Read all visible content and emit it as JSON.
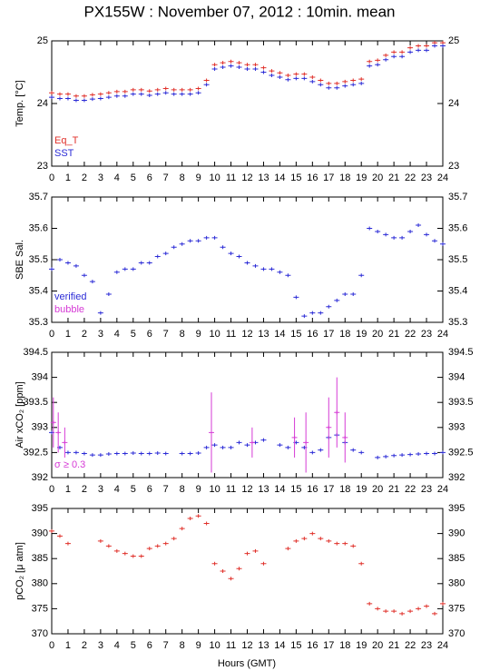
{
  "chart_data": [
    {
      "type": "scatter",
      "title": "PX155W : November 07, 2012 : 10min. mean",
      "ylabel": "Temp. [°C]",
      "xlim": [
        0,
        24
      ],
      "xticks": [
        0,
        1,
        2,
        3,
        4,
        5,
        6,
        7,
        8,
        9,
        10,
        11,
        12,
        13,
        14,
        15,
        16,
        17,
        18,
        19,
        20,
        21,
        22,
        23,
        24
      ],
      "ylim": [
        23,
        25
      ],
      "yticks": [
        23,
        24,
        25
      ],
      "series": [
        {
          "name": "Eq_T",
          "color": "#e0302a",
          "x": [
            0,
            0.5,
            1,
            1.5,
            2,
            2.5,
            3,
            3.5,
            4,
            4.5,
            5,
            5.5,
            6,
            6.5,
            7,
            7.5,
            8,
            8.5,
            9,
            9.5,
            10,
            10.5,
            11,
            11.5,
            12,
            12.5,
            13,
            13.5,
            14,
            14.5,
            15,
            15.5,
            16,
            16.5,
            17,
            17.5,
            18,
            18.5,
            19,
            19.5,
            20,
            20.5,
            21,
            21.5,
            22,
            22.5,
            23,
            23.5,
            24
          ],
          "values": [
            24.17,
            24.15,
            24.15,
            24.12,
            24.12,
            24.14,
            24.15,
            24.17,
            24.19,
            24.19,
            24.22,
            24.22,
            24.2,
            24.22,
            24.24,
            24.22,
            24.22,
            24.22,
            24.24,
            24.37,
            24.62,
            24.65,
            24.67,
            24.65,
            24.62,
            24.62,
            24.57,
            24.52,
            24.49,
            24.45,
            24.47,
            24.47,
            24.42,
            24.37,
            24.32,
            24.32,
            24.35,
            24.37,
            24.39,
            24.67,
            24.69,
            24.77,
            24.82,
            24.82,
            24.89,
            24.92,
            24.92,
            24.97,
            24.97
          ]
        },
        {
          "name": "SST",
          "color": "#2b2bd6",
          "x": [
            0,
            0.5,
            1,
            1.5,
            2,
            2.5,
            3,
            3.5,
            4,
            4.5,
            5,
            5.5,
            6,
            6.5,
            7,
            7.5,
            8,
            8.5,
            9,
            9.5,
            10,
            10.5,
            11,
            11.5,
            12,
            12.5,
            13,
            13.5,
            14,
            14.5,
            15,
            15.5,
            16,
            16.5,
            17,
            17.5,
            18,
            18.5,
            19,
            19.5,
            20,
            20.5,
            21,
            21.5,
            22,
            22.5,
            23,
            23.5,
            24
          ],
          "values": [
            24.1,
            24.08,
            24.08,
            24.05,
            24.05,
            24.07,
            24.08,
            24.1,
            24.12,
            24.12,
            24.15,
            24.15,
            24.13,
            24.15,
            24.17,
            24.15,
            24.15,
            24.15,
            24.17,
            24.3,
            24.55,
            24.58,
            24.6,
            24.58,
            24.55,
            24.55,
            24.5,
            24.45,
            24.42,
            24.38,
            24.4,
            24.4,
            24.35,
            24.3,
            24.25,
            24.25,
            24.28,
            24.3,
            24.32,
            24.6,
            24.62,
            24.7,
            24.75,
            24.75,
            24.82,
            24.85,
            24.85,
            24.92,
            24.92
          ]
        }
      ]
    },
    {
      "type": "scatter",
      "ylabel": "SBE Sal.",
      "xlim": [
        0,
        24
      ],
      "xticks": [
        0,
        1,
        2,
        3,
        4,
        5,
        6,
        7,
        8,
        9,
        10,
        11,
        12,
        13,
        14,
        15,
        16,
        17,
        18,
        19,
        20,
        21,
        22,
        23,
        24
      ],
      "ylim": [
        35.3,
        35.7
      ],
      "yticks": [
        35.3,
        35.4,
        35.5,
        35.6,
        35.7
      ],
      "series": [
        {
          "name": "verified",
          "color": "#2b2bd6",
          "x": [
            0,
            0.5,
            1,
            1.5,
            2,
            2.5,
            3,
            3.5,
            4,
            4.5,
            5,
            5.5,
            6,
            6.5,
            7,
            7.5,
            8,
            8.5,
            9,
            9.5,
            10,
            10.5,
            11,
            11.5,
            12,
            12.5,
            13,
            13.5,
            14,
            14.5,
            15,
            15.5,
            16,
            16.5,
            17,
            17.5,
            18,
            18.5,
            19,
            19.5,
            20,
            20.5,
            21,
            21.5,
            22,
            22.5,
            23,
            23.5,
            24
          ],
          "values": [
            35.47,
            35.5,
            35.49,
            35.48,
            35.45,
            35.43,
            35.33,
            35.39,
            35.46,
            35.47,
            35.47,
            35.49,
            35.49,
            35.51,
            35.52,
            35.54,
            35.55,
            35.56,
            35.56,
            35.57,
            35.57,
            35.54,
            35.52,
            35.51,
            35.49,
            35.48,
            35.47,
            35.47,
            35.46,
            35.45,
            35.38,
            35.32,
            35.33,
            35.33,
            35.35,
            35.37,
            35.39,
            35.39,
            35.45,
            35.6,
            35.59,
            35.58,
            35.57,
            35.57,
            35.59,
            35.61,
            35.58,
            35.56,
            35.55
          ]
        },
        {
          "name": "bubble",
          "color": "#d63bd6",
          "x": [],
          "values": []
        }
      ]
    },
    {
      "type": "scatter",
      "ylabel": "Air xCO₂ [ppm]",
      "xlim": [
        0,
        24
      ],
      "xticks": [
        0,
        1,
        2,
        3,
        4,
        5,
        6,
        7,
        8,
        9,
        10,
        11,
        12,
        13,
        14,
        15,
        16,
        17,
        18,
        19,
        20,
        21,
        22,
        23,
        24
      ],
      "ylim": [
        392,
        394.5
      ],
      "yticks": [
        392,
        392.5,
        393,
        393.5,
        394,
        394.5
      ],
      "series": [
        {
          "color": "#2b2bd6",
          "x": [
            0,
            0.5,
            1,
            1.5,
            2,
            2.5,
            3,
            3.5,
            4,
            4.5,
            5,
            5.5,
            6,
            6.5,
            7,
            8,
            8.5,
            9,
            9.5,
            10,
            10.5,
            11,
            11.5,
            12,
            12.5,
            13,
            14,
            14.5,
            15,
            15.5,
            16,
            16.5,
            17,
            17.5,
            18,
            18.5,
            19,
            20,
            20.5,
            21,
            21.5,
            22,
            22.5,
            23,
            23.5,
            24
          ],
          "values": [
            392.9,
            392.6,
            392.5,
            392.5,
            392.48,
            392.45,
            392.45,
            392.47,
            392.48,
            392.48,
            392.49,
            392.48,
            392.48,
            392.49,
            392.48,
            392.48,
            392.48,
            392.49,
            392.6,
            392.65,
            392.6,
            392.6,
            392.7,
            392.65,
            392.7,
            392.75,
            392.65,
            392.6,
            392.7,
            392.6,
            392.5,
            392.55,
            392.8,
            392.85,
            392.7,
            392.55,
            392.5,
            392.4,
            392.42,
            392.44,
            392.45,
            392.46,
            392.47,
            392.48,
            392.48,
            392.5
          ]
        },
        {
          "name": "σ ≥ 0.3",
          "color": "#d63bd6",
          "x": [
            0.1,
            0.4,
            0.8,
            9.8,
            12.3,
            14.9,
            15.6,
            17.0,
            17.5,
            18.0
          ],
          "values": [
            393.1,
            392.9,
            392.7,
            392.9,
            392.7,
            392.8,
            392.7,
            393.0,
            393.3,
            392.8
          ],
          "errors": [
            0.5,
            0.4,
            0.3,
            0.8,
            0.3,
            0.4,
            0.6,
            0.6,
            0.7,
            0.5
          ]
        }
      ]
    },
    {
      "type": "scatter",
      "ylabel": "pCO₂ [μ atm]",
      "xlabel": "Hours (GMT)",
      "xlim": [
        0,
        24
      ],
      "xticks": [
        0,
        1,
        2,
        3,
        4,
        5,
        6,
        7,
        8,
        9,
        10,
        11,
        12,
        13,
        14,
        15,
        16,
        17,
        18,
        19,
        20,
        21,
        22,
        23,
        24
      ],
      "ylim": [
        370,
        395
      ],
      "yticks": [
        370,
        375,
        380,
        385,
        390,
        395
      ],
      "series": [
        {
          "color": "#e0302a",
          "x": [
            0,
            0.5,
            1,
            3,
            3.5,
            4,
            4.5,
            5,
            5.5,
            6,
            6.5,
            7,
            7.5,
            8,
            8.5,
            9,
            9.5,
            10,
            10.5,
            11,
            11.5,
            12,
            12.5,
            13,
            14.5,
            15,
            15.5,
            16,
            16.5,
            17,
            17.5,
            18,
            18.5,
            19,
            19.5,
            20,
            20.5,
            21,
            21.5,
            22,
            22.5,
            23,
            23.5,
            24
          ],
          "values": [
            390.5,
            389.5,
            388,
            388.5,
            387.5,
            386.5,
            386,
            385.5,
            385.5,
            387,
            387.5,
            388,
            389,
            391,
            393,
            393.5,
            392,
            384,
            382.5,
            381,
            383,
            386,
            386.5,
            384,
            387,
            388.5,
            389,
            390,
            389,
            388.5,
            388,
            388,
            387.5,
            384,
            376,
            375,
            374.5,
            374.5,
            374,
            374.5,
            375,
            375.5,
            374,
            376
          ]
        }
      ]
    }
  ]
}
